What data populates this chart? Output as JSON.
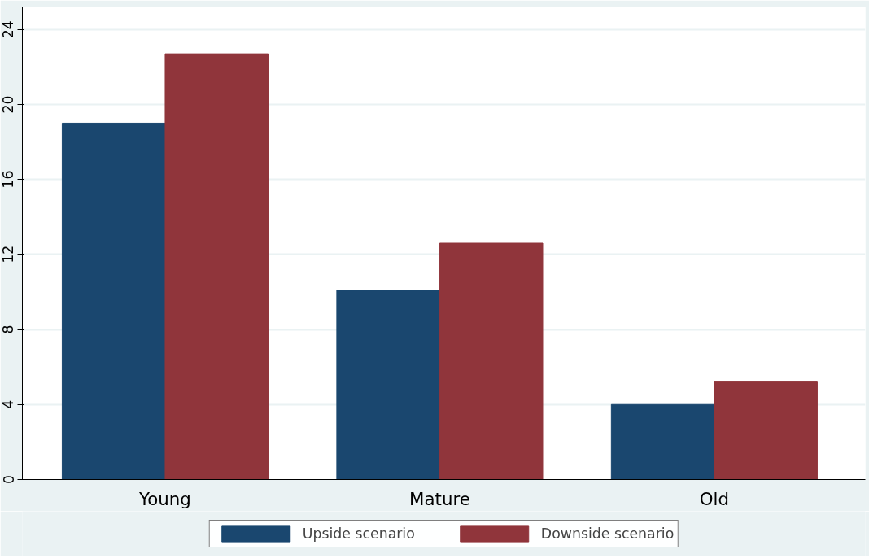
{
  "chart_data": {
    "type": "bar",
    "categories": [
      "Young",
      "Mature",
      "Old"
    ],
    "series": [
      {
        "name": "Upside scenario",
        "color": "#1a476f",
        "values": [
          19.0,
          10.1,
          4.0
        ]
      },
      {
        "name": "Downside scenario",
        "color": "#90353b",
        "values": [
          22.7,
          12.6,
          5.2
        ]
      }
    ],
    "ylim": [
      0,
      25.2
    ],
    "yticks": [
      0,
      4,
      8,
      12,
      16,
      20,
      24
    ],
    "grid": "y",
    "legend": "bottom"
  }
}
